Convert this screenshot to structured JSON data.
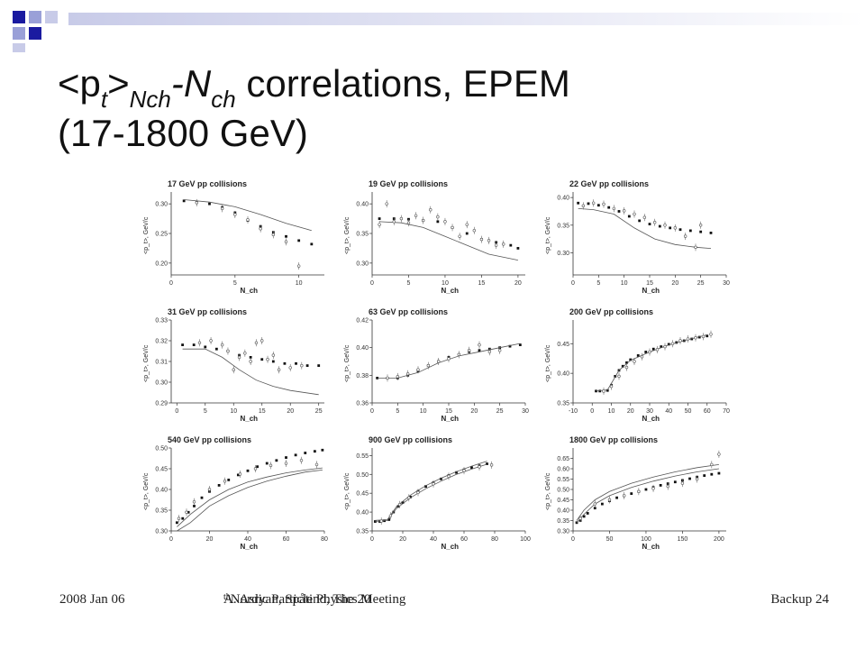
{
  "slide": {
    "title_main": "<p",
    "title_sub_t": "t",
    "title_gt": ">",
    "title_sub_nch": "Nch",
    "title_dash_n": "-N",
    "title_sub_ch": "ch",
    "title_rest": " correlations, EPEM",
    "title_line2": "(17-1800 GeV)",
    "footer_date": "2008 Jan 06",
    "footer_center_pre": "A. Asryan, Spåtind, The 20",
    "footer_center_sup": "th",
    "footer_center_post": " Nordic Particle Physics Meeting",
    "footer_right": "Backup 24",
    "deco_colors": [
      "#1a1aa0",
      "#9aa0d8",
      "#c8cbe8"
    ]
  },
  "chart_data": [
    {
      "type": "scatter",
      "title": "17 GeV pp collisions",
      "ylabel": "<p_t>, GeV/c",
      "xlabel": "N_ch",
      "xlim": [
        0,
        12
      ],
      "ylim": [
        0.18,
        0.32
      ],
      "xticks": [
        0,
        5,
        10
      ],
      "yticks": [
        0.2,
        0.25,
        0.3
      ],
      "series": [
        {
          "style": "points",
          "x": [
            1,
            2,
            3,
            4,
            5,
            6,
            7,
            8,
            9,
            10,
            11
          ],
          "y": [
            0.305,
            0.303,
            0.3,
            0.294,
            0.285,
            0.272,
            0.262,
            0.252,
            0.245,
            0.238,
            0.232
          ]
        },
        {
          "style": "line",
          "x": [
            1,
            3,
            5,
            7,
            9,
            11
          ],
          "y": [
            0.307,
            0.303,
            0.295,
            0.282,
            0.267,
            0.255
          ]
        },
        {
          "style": "open",
          "x": [
            2,
            4,
            5,
            6,
            7,
            8,
            9,
            10
          ],
          "y": [
            0.302,
            0.292,
            0.282,
            0.273,
            0.258,
            0.248,
            0.236,
            0.195
          ]
        }
      ]
    },
    {
      "type": "scatter",
      "title": "19 GeV pp collisions",
      "ylabel": "<p_t>, GeV/c",
      "xlabel": "N_ch",
      "xlim": [
        0,
        21
      ],
      "ylim": [
        0.28,
        0.42
      ],
      "xticks": [
        0,
        5,
        10,
        15,
        20
      ],
      "yticks": [
        0.3,
        0.35,
        0.4
      ],
      "series": [
        {
          "style": "points",
          "x": [
            1,
            3,
            5,
            7,
            9,
            11,
            13,
            15,
            17,
            19,
            20
          ],
          "y": [
            0.375,
            0.375,
            0.374,
            0.372,
            0.37,
            0.36,
            0.35,
            0.34,
            0.335,
            0.33,
            0.325
          ]
        },
        {
          "style": "line",
          "x": [
            1,
            4,
            7,
            10,
            13,
            16,
            20
          ],
          "y": [
            0.37,
            0.368,
            0.36,
            0.345,
            0.33,
            0.315,
            0.305
          ]
        },
        {
          "style": "open",
          "x": [
            1,
            2,
            3,
            4,
            5,
            6,
            7,
            8,
            9,
            10,
            11,
            12,
            13,
            14,
            15,
            16,
            17,
            18
          ],
          "y": [
            0.365,
            0.4,
            0.37,
            0.375,
            0.368,
            0.38,
            0.372,
            0.39,
            0.378,
            0.37,
            0.36,
            0.345,
            0.365,
            0.355,
            0.34,
            0.338,
            0.33,
            0.332
          ]
        }
      ]
    },
    {
      "type": "scatter",
      "title": "22 GeV pp collisions",
      "ylabel": "<p_t>, GeV/c",
      "xlabel": "N_ch",
      "xlim": [
        0,
        30
      ],
      "ylim": [
        0.26,
        0.41
      ],
      "xticks": [
        0,
        5,
        10,
        15,
        20,
        25,
        30
      ],
      "yticks": [
        0.3,
        0.35,
        0.4
      ],
      "series": [
        {
          "style": "points",
          "x": [
            1,
            3,
            5,
            7,
            9,
            11,
            13,
            15,
            17,
            19,
            21,
            23,
            25,
            27
          ],
          "y": [
            0.39,
            0.389,
            0.386,
            0.382,
            0.375,
            0.366,
            0.358,
            0.352,
            0.348,
            0.345,
            0.342,
            0.34,
            0.338,
            0.336
          ]
        },
        {
          "style": "line",
          "x": [
            1,
            4,
            8,
            12,
            16,
            20,
            24,
            27
          ],
          "y": [
            0.38,
            0.378,
            0.37,
            0.345,
            0.325,
            0.315,
            0.31,
            0.308
          ]
        },
        {
          "style": "open",
          "x": [
            2,
            4,
            6,
            8,
            10,
            12,
            14,
            16,
            18,
            20,
            22,
            24,
            25
          ],
          "y": [
            0.385,
            0.39,
            0.388,
            0.38,
            0.376,
            0.37,
            0.364,
            0.355,
            0.35,
            0.345,
            0.33,
            0.31,
            0.35
          ]
        }
      ]
    },
    {
      "type": "scatter",
      "title": "31 GeV pp collisions",
      "ylabel": "<p_t>, GeV/c",
      "xlabel": "N_ch",
      "xlim": [
        -1,
        26
      ],
      "ylim": [
        0.29,
        0.33
      ],
      "xticks": [
        0,
        5,
        10,
        15,
        20,
        25
      ],
      "yticks": [
        0.29,
        0.3,
        0.31,
        0.32,
        0.33
      ],
      "series": [
        {
          "style": "points",
          "x": [
            1,
            3,
            5,
            7,
            9,
            11,
            13,
            15,
            17,
            19,
            21,
            23,
            25
          ],
          "y": [
            0.318,
            0.318,
            0.317,
            0.316,
            0.315,
            0.313,
            0.312,
            0.311,
            0.31,
            0.309,
            0.309,
            0.308,
            0.308
          ]
        },
        {
          "style": "line",
          "x": [
            1,
            5,
            8,
            11,
            14,
            17,
            20,
            25
          ],
          "y": [
            0.316,
            0.316,
            0.312,
            0.306,
            0.301,
            0.298,
            0.296,
            0.294
          ]
        },
        {
          "style": "open",
          "x": [
            4,
            6,
            8,
            9,
            10,
            11,
            12,
            13,
            14,
            15,
            16,
            17,
            18,
            20,
            22
          ],
          "y": [
            0.319,
            0.32,
            0.318,
            0.315,
            0.306,
            0.312,
            0.314,
            0.31,
            0.319,
            0.32,
            0.311,
            0.313,
            0.306,
            0.307,
            0.308
          ]
        }
      ]
    },
    {
      "type": "scatter",
      "title": "63 GeV pp collisions",
      "ylabel": "<p_t>, GeV/c",
      "xlabel": "N_ch",
      "xlim": [
        0,
        30
      ],
      "ylim": [
        0.36,
        0.42
      ],
      "xticks": [
        0,
        5,
        10,
        15,
        20,
        25,
        30
      ],
      "yticks": [
        0.36,
        0.38,
        0.4,
        0.42
      ],
      "series": [
        {
          "style": "points",
          "x": [
            1,
            3,
            5,
            7,
            9,
            11,
            13,
            15,
            17,
            19,
            21,
            23,
            25,
            27,
            29
          ],
          "y": [
            0.378,
            0.378,
            0.378,
            0.38,
            0.383,
            0.387,
            0.39,
            0.393,
            0.395,
            0.397,
            0.398,
            0.399,
            0.4,
            0.401,
            0.402
          ]
        },
        {
          "style": "line",
          "x": [
            1,
            5,
            9,
            13,
            17,
            21,
            25,
            29
          ],
          "y": [
            0.378,
            0.378,
            0.382,
            0.389,
            0.394,
            0.397,
            0.4,
            0.403
          ]
        },
        {
          "style": "open",
          "x": [
            3,
            5,
            7,
            9,
            11,
            13,
            15,
            17,
            19,
            21,
            23,
            25
          ],
          "y": [
            0.378,
            0.379,
            0.381,
            0.384,
            0.387,
            0.39,
            0.392,
            0.395,
            0.398,
            0.402,
            0.397,
            0.398
          ]
        }
      ]
    },
    {
      "type": "scatter",
      "title": "200 GeV pp collisions",
      "ylabel": "<p_t>, GeV/c",
      "xlabel": "N_ch",
      "xlim": [
        -10,
        70
      ],
      "ylim": [
        0.35,
        0.49
      ],
      "xticks": [
        -10,
        0,
        10,
        20,
        30,
        40,
        50,
        60,
        70
      ],
      "yticks": [
        0.35,
        0.4,
        0.45
      ],
      "series": [
        {
          "style": "points",
          "x": [
            2,
            4,
            6,
            8,
            10,
            12,
            14,
            16,
            18,
            20,
            24,
            28,
            32,
            36,
            40,
            44,
            48,
            52,
            56,
            60
          ],
          "y": [
            0.37,
            0.37,
            0.37,
            0.371,
            0.38,
            0.395,
            0.405,
            0.412,
            0.418,
            0.423,
            0.43,
            0.436,
            0.441,
            0.445,
            0.449,
            0.452,
            0.455,
            0.458,
            0.461,
            0.463
          ]
        },
        {
          "style": "line",
          "x": [
            2,
            8,
            14,
            20,
            30,
            40,
            50,
            60
          ],
          "y": [
            0.37,
            0.372,
            0.405,
            0.422,
            0.436,
            0.448,
            0.457,
            0.465
          ]
        },
        {
          "style": "open",
          "x": [
            6,
            10,
            14,
            18,
            22,
            26,
            30,
            34,
            38,
            42,
            46,
            50,
            54,
            58,
            62
          ],
          "y": [
            0.37,
            0.378,
            0.395,
            0.41,
            0.42,
            0.428,
            0.436,
            0.44,
            0.445,
            0.45,
            0.455,
            0.458,
            0.46,
            0.462,
            0.466
          ]
        }
      ]
    },
    {
      "type": "scatter",
      "title": "540 GeV pp collisions",
      "ylabel": "<p_t>, GeV/c",
      "xlabel": "N_ch",
      "xlim": [
        0,
        80
      ],
      "ylim": [
        0.3,
        0.5
      ],
      "xticks": [
        0,
        20,
        40,
        60,
        80
      ],
      "yticks": [
        0.3,
        0.35,
        0.4,
        0.45,
        0.5
      ],
      "series": [
        {
          "style": "points",
          "x": [
            3,
            6,
            9,
            12,
            16,
            20,
            25,
            30,
            35,
            40,
            45,
            50,
            55,
            60,
            65,
            70,
            75,
            79
          ],
          "y": [
            0.32,
            0.33,
            0.345,
            0.36,
            0.38,
            0.395,
            0.41,
            0.423,
            0.435,
            0.445,
            0.455,
            0.463,
            0.47,
            0.477,
            0.483,
            0.488,
            0.492,
            0.495
          ]
        },
        {
          "style": "line",
          "x": [
            3,
            10,
            20,
            30,
            40,
            50,
            60,
            70,
            79
          ],
          "y": [
            0.31,
            0.34,
            0.375,
            0.4,
            0.418,
            0.43,
            0.44,
            0.447,
            0.452
          ]
        },
        {
          "style": "line",
          "x": [
            3,
            10,
            20,
            30,
            40,
            50,
            60,
            70,
            79
          ],
          "y": [
            0.3,
            0.32,
            0.36,
            0.385,
            0.405,
            0.42,
            0.432,
            0.442,
            0.447
          ]
        },
        {
          "style": "open",
          "x": [
            4,
            8,
            12,
            20,
            28,
            36,
            44,
            52,
            60,
            68,
            76
          ],
          "y": [
            0.33,
            0.345,
            0.37,
            0.4,
            0.42,
            0.437,
            0.45,
            0.458,
            0.463,
            0.47,
            0.46
          ]
        }
      ]
    },
    {
      "type": "scatter",
      "title": "900 GeV pp collisions",
      "ylabel": "<p_t>, GeV/c",
      "xlabel": "N_ch",
      "xlim": [
        0,
        100
      ],
      "ylim": [
        0.35,
        0.57
      ],
      "xticks": [
        0,
        20,
        40,
        60,
        80,
        100
      ],
      "yticks": [
        0.35,
        0.4,
        0.45,
        0.5,
        0.55
      ],
      "series": [
        {
          "style": "points",
          "x": [
            2,
            5,
            8,
            11,
            14,
            17,
            20,
            25,
            30,
            35,
            40,
            45,
            50,
            55,
            60,
            65,
            70,
            75
          ],
          "y": [
            0.375,
            0.375,
            0.377,
            0.38,
            0.4,
            0.415,
            0.425,
            0.44,
            0.455,
            0.468,
            0.478,
            0.488,
            0.497,
            0.505,
            0.512,
            0.518,
            0.523,
            0.528
          ]
        },
        {
          "style": "line",
          "x": [
            2,
            10,
            16,
            25,
            35,
            45,
            55,
            65,
            75
          ],
          "y": [
            0.378,
            0.38,
            0.415,
            0.445,
            0.47,
            0.49,
            0.507,
            0.522,
            0.535
          ]
        },
        {
          "style": "line",
          "x": [
            2,
            10,
            16,
            25,
            35,
            45,
            55,
            65,
            75
          ],
          "y": [
            0.375,
            0.378,
            0.41,
            0.438,
            0.462,
            0.482,
            0.5,
            0.514,
            0.527
          ]
        },
        {
          "style": "open",
          "x": [
            6,
            12,
            18,
            24,
            30,
            40,
            50,
            60,
            70,
            78
          ],
          "y": [
            0.376,
            0.39,
            0.42,
            0.438,
            0.452,
            0.475,
            0.495,
            0.51,
            0.52,
            0.525
          ]
        }
      ]
    },
    {
      "type": "scatter",
      "title": "1800 GeV pp collisions",
      "ylabel": "<p_t>, GeV/c",
      "xlabel": "N_ch",
      "xlim": [
        0,
        210
      ],
      "ylim": [
        0.3,
        0.7
      ],
      "xticks": [
        0,
        50,
        100,
        150,
        200
      ],
      "yticks": [
        0.3,
        0.35,
        0.4,
        0.45,
        0.5,
        0.55,
        0.6,
        0.65
      ],
      "series": [
        {
          "style": "points",
          "x": [
            5,
            10,
            15,
            20,
            30,
            40,
            50,
            60,
            70,
            80,
            90,
            100,
            110,
            120,
            130,
            140,
            150,
            160,
            170,
            180,
            190,
            200
          ],
          "y": [
            0.34,
            0.35,
            0.37,
            0.385,
            0.41,
            0.43,
            0.445,
            0.46,
            0.47,
            0.48,
            0.49,
            0.5,
            0.51,
            0.52,
            0.528,
            0.536,
            0.544,
            0.552,
            0.56,
            0.567,
            0.573,
            0.578
          ]
        },
        {
          "style": "line",
          "x": [
            5,
            15,
            30,
            50,
            80,
            110,
            140,
            170,
            200
          ],
          "y": [
            0.35,
            0.4,
            0.45,
            0.49,
            0.53,
            0.56,
            0.585,
            0.605,
            0.62
          ]
        },
        {
          "style": "line",
          "x": [
            5,
            15,
            30,
            50,
            80,
            110,
            140,
            170,
            200
          ],
          "y": [
            0.34,
            0.38,
            0.43,
            0.47,
            0.51,
            0.54,
            0.565,
            0.585,
            0.6
          ]
        },
        {
          "style": "open",
          "x": [
            10,
            30,
            50,
            70,
            90,
            110,
            130,
            150,
            170,
            190,
            200
          ],
          "y": [
            0.36,
            0.43,
            0.45,
            0.47,
            0.49,
            0.505,
            0.515,
            0.53,
            0.55,
            0.62,
            0.67
          ]
        }
      ]
    }
  ]
}
